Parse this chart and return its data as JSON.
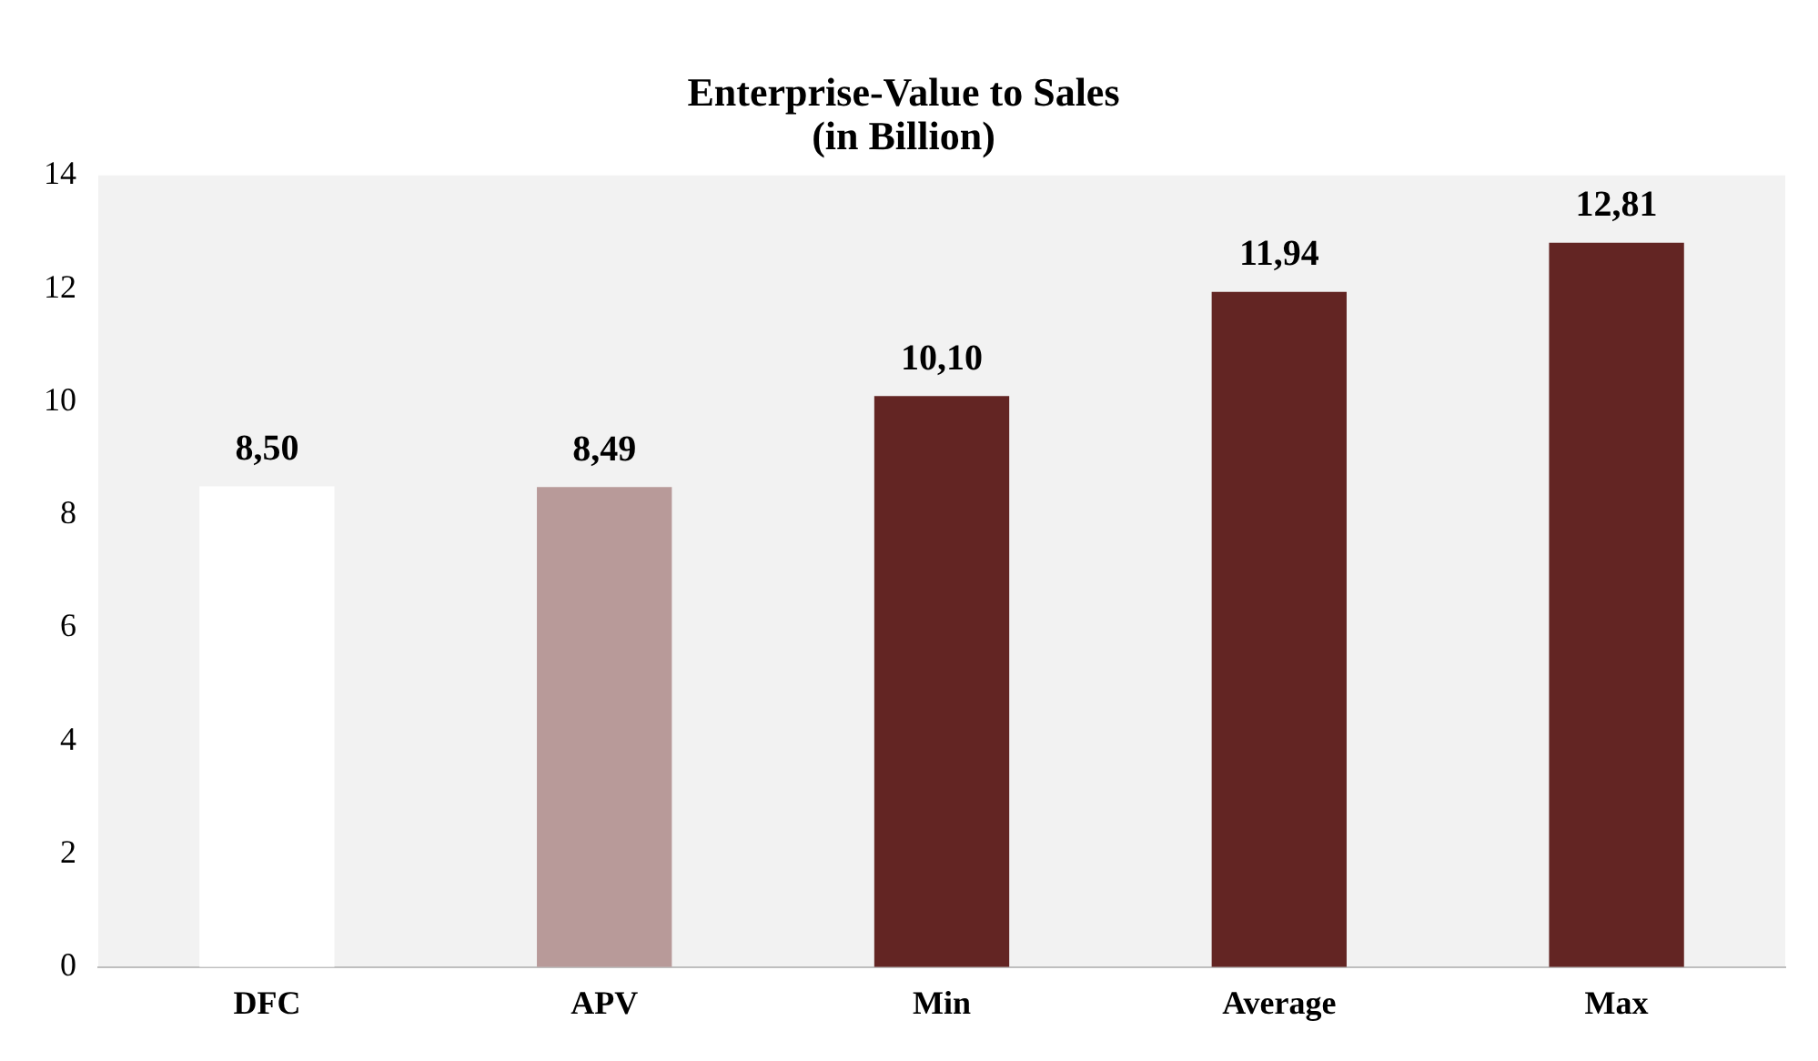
{
  "chart_data": {
    "type": "bar",
    "title": "Enterprise-Value to Sales\n(in Billion)",
    "categories": [
      "DFC",
      "APV",
      "Min",
      "Average",
      "Max"
    ],
    "values": [
      8.5,
      8.49,
      10.1,
      11.94,
      12.81
    ],
    "value_labels": [
      "8,50",
      "8,49",
      "10,10",
      "11,94",
      "12,81"
    ],
    "colors": [
      "#ffffff",
      "#b89a99",
      "#632523",
      "#632523",
      "#632523"
    ],
    "ylim": [
      0,
      14
    ],
    "yticks": [
      0,
      2,
      4,
      6,
      8,
      10,
      12,
      14
    ],
    "grid": false,
    "legend": false
  }
}
